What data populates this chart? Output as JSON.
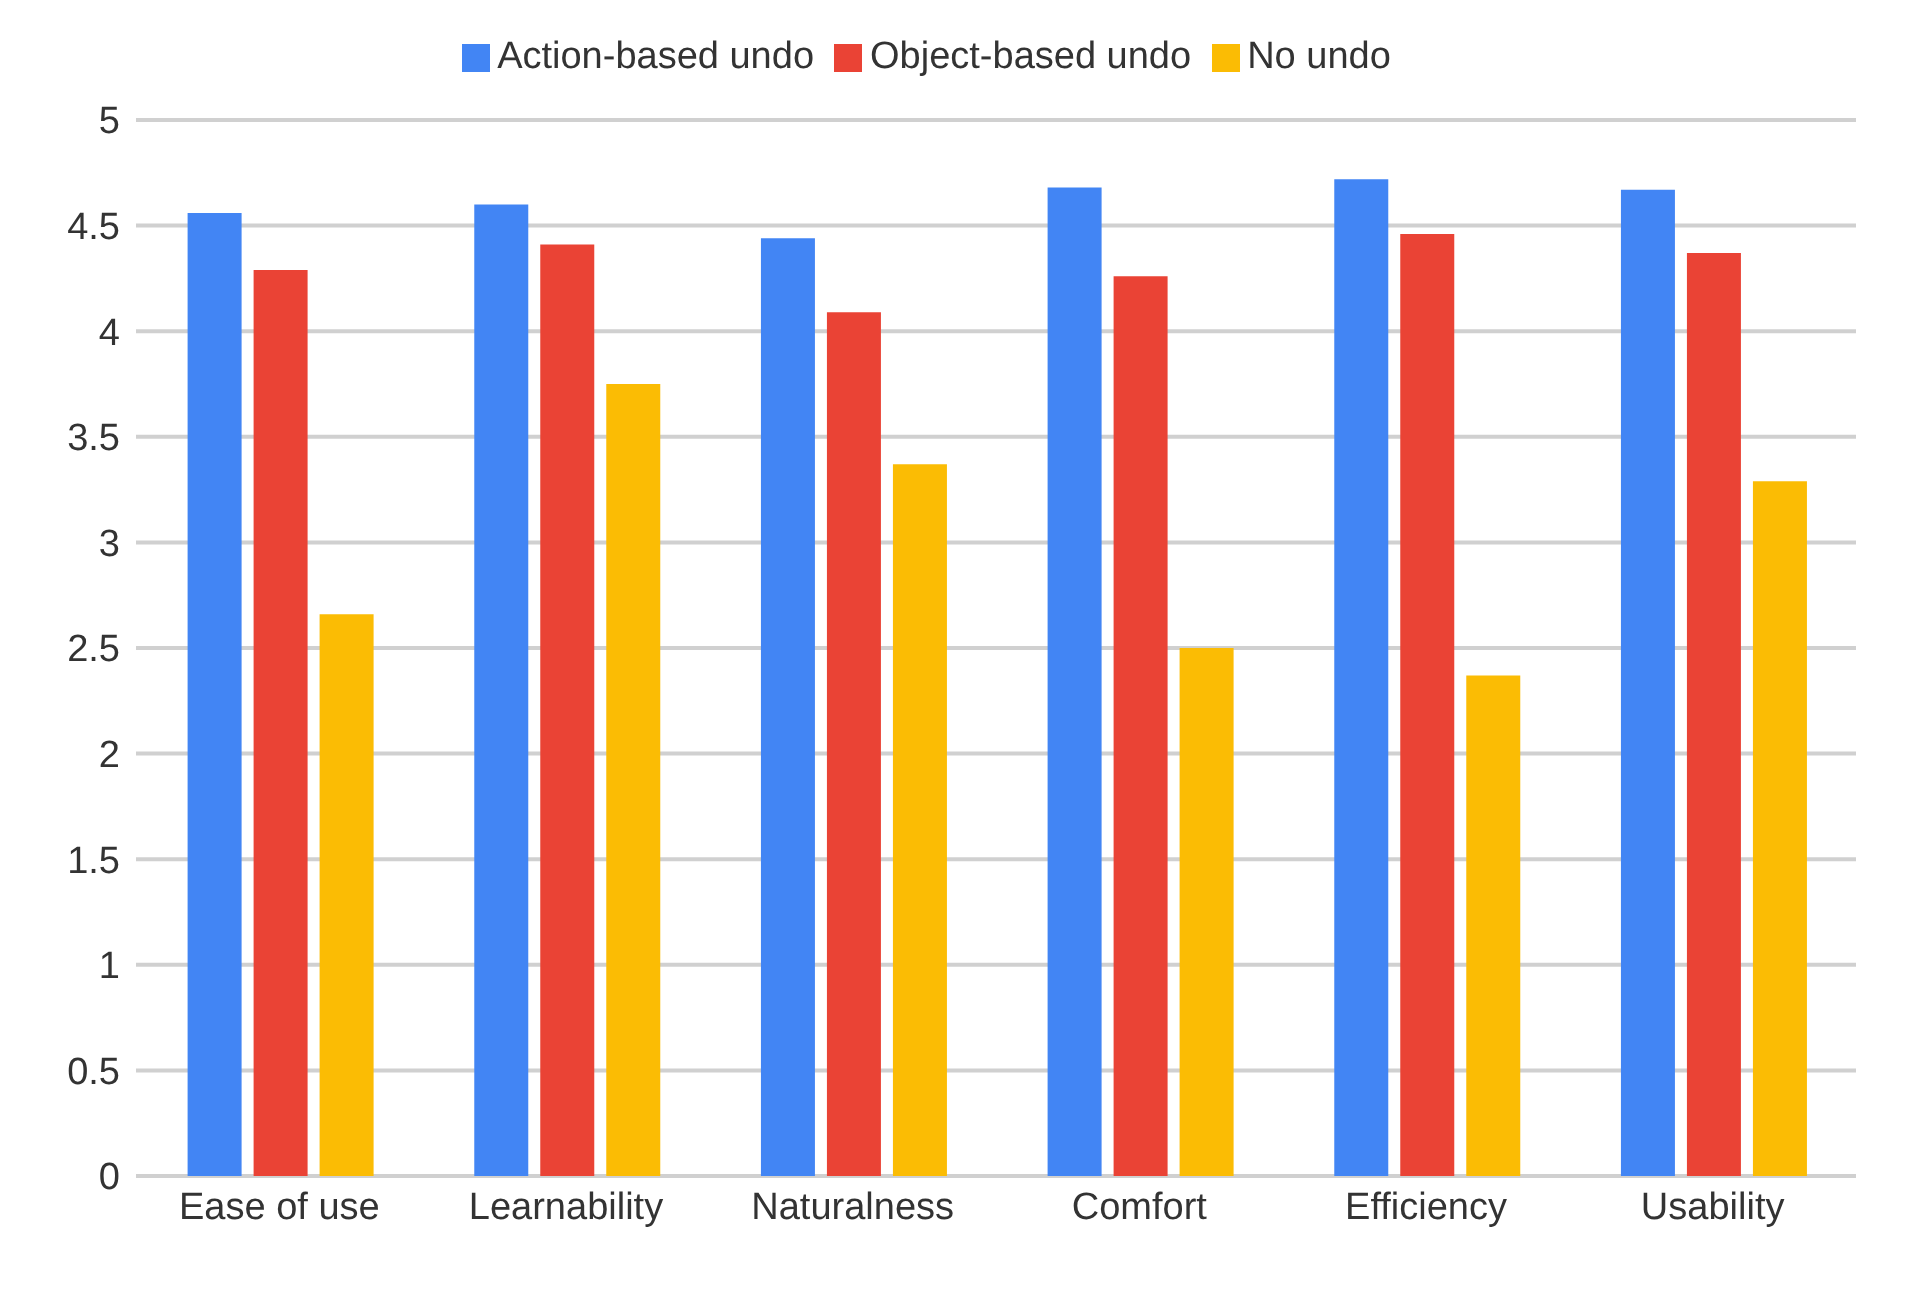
{
  "chart_data": {
    "type": "bar",
    "categories": [
      "Ease of use",
      "Learnability",
      "Naturalness",
      "Comfort",
      "Efficiency",
      "Usability"
    ],
    "series": [
      {
        "name": "Action-based undo",
        "color": "#4285f4",
        "values": [
          4.56,
          4.6,
          4.44,
          4.68,
          4.72,
          4.67
        ]
      },
      {
        "name": "Object-based undo",
        "color": "#ea4335",
        "values": [
          4.29,
          4.41,
          4.09,
          4.26,
          4.46,
          4.37
        ]
      },
      {
        "name": "No undo",
        "color": "#fbbc04",
        "values": [
          2.66,
          3.75,
          3.37,
          2.5,
          2.37,
          3.29
        ]
      }
    ],
    "ylim": [
      0,
      5
    ],
    "yticks": [
      0,
      0.5,
      1,
      1.5,
      2,
      2.5,
      3,
      3.5,
      4,
      4.5,
      5
    ],
    "grid": "y",
    "legend": "top"
  }
}
